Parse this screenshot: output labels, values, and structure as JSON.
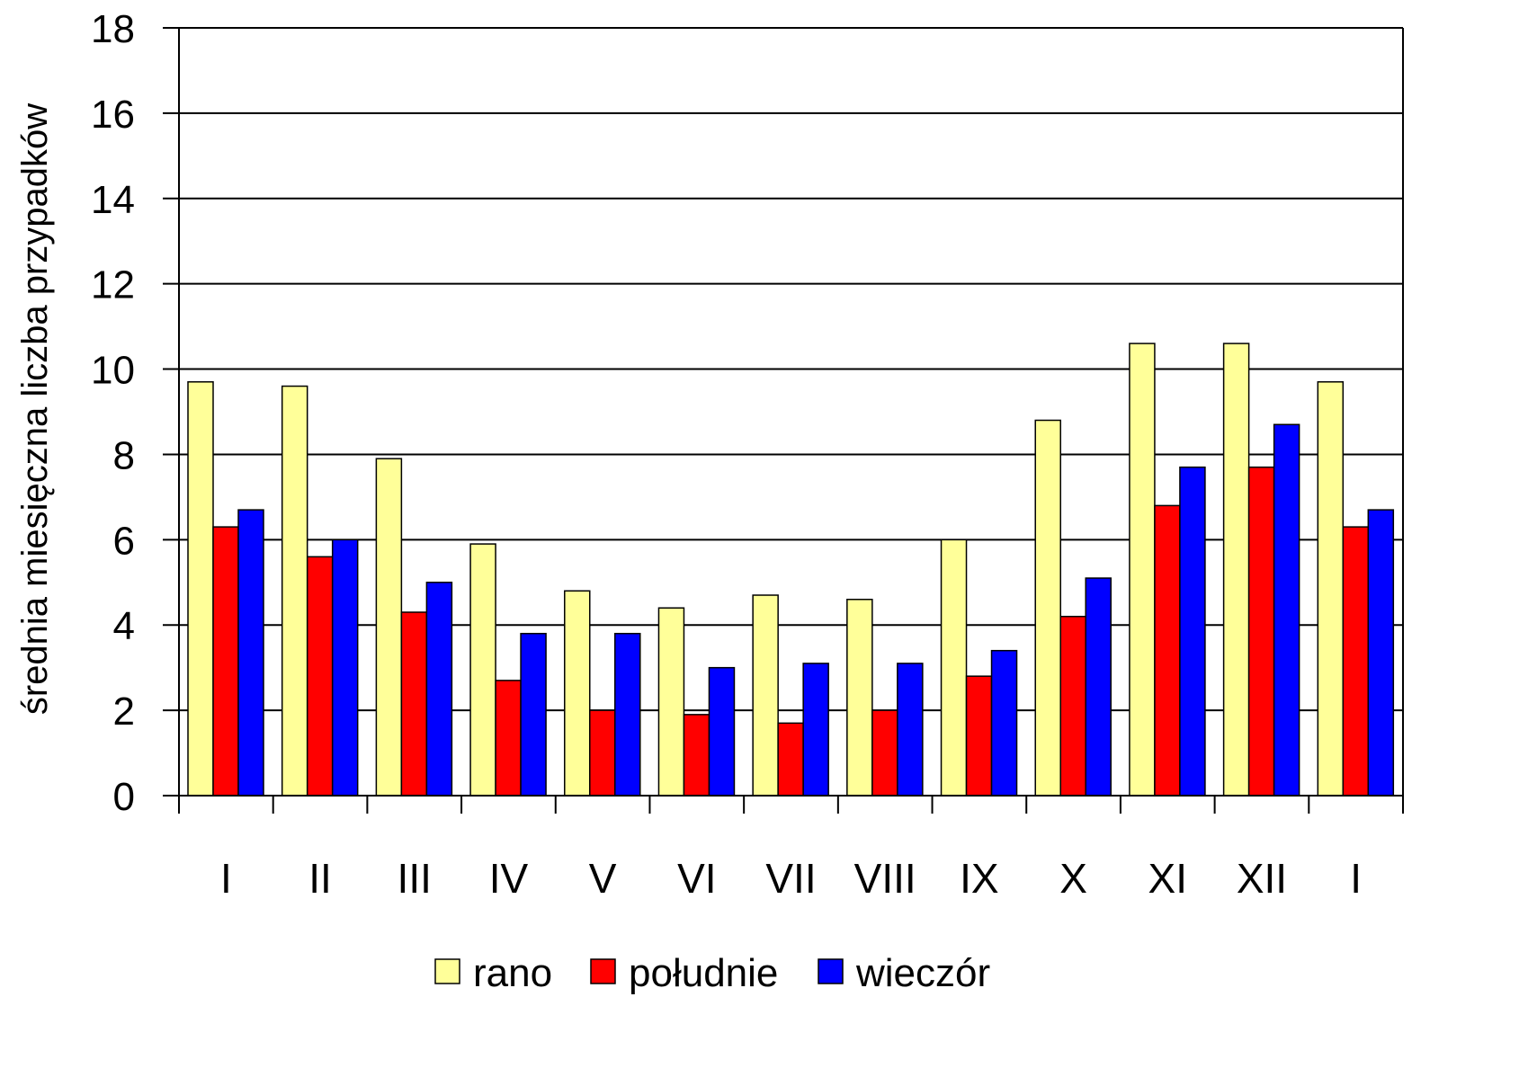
{
  "chart_data": {
    "type": "bar",
    "title": "",
    "xlabel": "",
    "ylabel": "średnia miesięczna liczba przypadków",
    "ylim": [
      0,
      18
    ],
    "yticks": [
      "0",
      "2",
      "4",
      "6",
      "8",
      "10",
      "12",
      "14",
      "16",
      "18"
    ],
    "categories": [
      "I",
      "II",
      "III",
      "IV",
      "V",
      "VI",
      "VII",
      "VIII",
      "IX",
      "X",
      "XI",
      "XII",
      "I"
    ],
    "series": [
      {
        "name": "rano",
        "color": "#ffff99",
        "values": [
          9.7,
          9.6,
          7.9,
          5.9,
          4.8,
          4.4,
          4.7,
          4.6,
          6.0,
          8.8,
          10.6,
          10.6,
          9.7
        ]
      },
      {
        "name": "południe",
        "color": "#ff0000",
        "values": [
          6.3,
          5.6,
          4.3,
          2.7,
          2.0,
          1.9,
          1.7,
          2.0,
          2.8,
          4.2,
          6.8,
          7.7,
          6.3
        ]
      },
      {
        "name": "wieczór",
        "color": "#0000ff",
        "values": [
          6.7,
          6.0,
          5.0,
          3.8,
          3.8,
          3.0,
          3.1,
          3.1,
          3.4,
          5.1,
          7.7,
          8.7,
          6.7
        ]
      }
    ],
    "grid": true,
    "legend_position": "bottom"
  }
}
